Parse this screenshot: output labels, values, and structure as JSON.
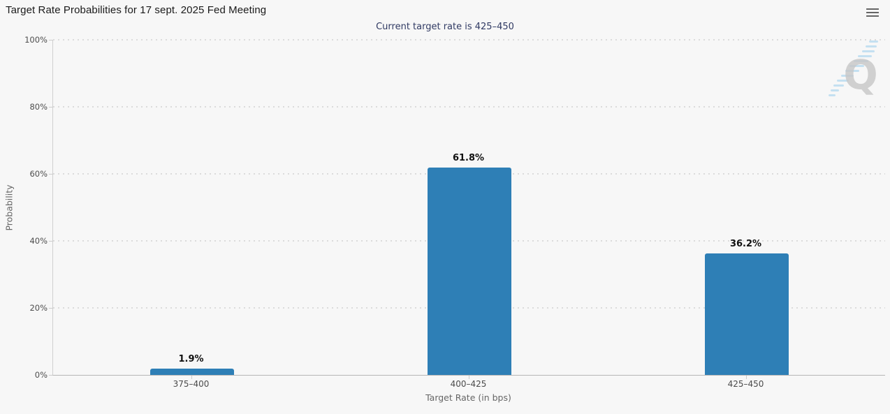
{
  "chart_data": {
    "type": "bar",
    "title": "Target Rate Probabilities for 17 sept. 2025 Fed Meeting",
    "subtitle": "Current target rate is 425–450",
    "categories": [
      "375–400",
      "400–425",
      "425–450"
    ],
    "values": [
      1.9,
      61.8,
      36.2
    ],
    "data_labels": [
      "1.9%",
      "61.8%",
      "36.2%"
    ],
    "xlabel": "Target Rate (in bps)",
    "ylabel": "Probability",
    "ylim": [
      0,
      100
    ],
    "yticks": [
      0,
      20,
      40,
      60,
      80,
      100
    ],
    "ytick_labels": [
      "0%",
      "20%",
      "40%",
      "60%",
      "80%",
      "100%"
    ],
    "legend": "none",
    "grid": "horizontal-dotted",
    "bar_color": "#2e7fb6"
  },
  "colors": {
    "background": "#f7f7f7",
    "bar": "#2e7fb6",
    "title_text": "#1a1a1a",
    "subtitle_text": "#303a63",
    "axis_text": "#4a4a4a",
    "axis_title_text": "#666666",
    "gridline": "#dbdbdb",
    "menu_icon": "#666666"
  },
  "icons": {
    "menu": "hamburger",
    "watermark": "q-logo"
  }
}
